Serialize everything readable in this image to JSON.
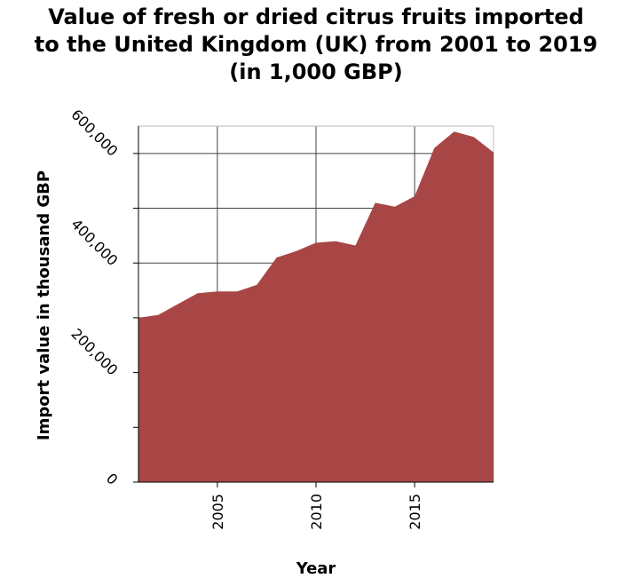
{
  "title_lines": [
    "Value of fresh or dried citrus fruits imported",
    "to the United Kingdom (UK) from 2001 to 2019",
    "(in 1,000 GBP)"
  ],
  "chart_data": {
    "type": "area",
    "title": "Value of fresh or dried citrus fruits imported to the United Kingdom (UK) from 2001 to 2019 (in 1,000 GBP)",
    "xlabel": "Year",
    "ylabel": "Import value in thousand GBP",
    "x": [
      2001,
      2002,
      2003,
      2004,
      2005,
      2006,
      2007,
      2008,
      2009,
      2010,
      2011,
      2012,
      2013,
      2014,
      2015,
      2016,
      2017,
      2018,
      2019
    ],
    "series": [
      {
        "values": [
          300000,
          305000,
          325000,
          345000,
          348000,
          348000,
          360000,
          410000,
          422000,
          437000,
          440000,
          432000,
          510000,
          503000,
          522000,
          610000,
          640000,
          630000,
          602000
        ]
      }
    ],
    "xlim": [
      2001,
      2019
    ],
    "ylim": [
      0,
      650000
    ],
    "x_ticks": [
      2005,
      2010,
      2015
    ],
    "x_tick_labels": [
      "2005",
      "2010",
      "2015"
    ],
    "y_ticks": [
      0,
      200000,
      400000,
      600000
    ],
    "y_tick_labels": [
      "0",
      "200,000",
      "400,000",
      "600,000"
    ],
    "y_minor_ticks": [
      100000,
      300000,
      500000
    ],
    "grid": true,
    "fill_color": "#a84646"
  }
}
